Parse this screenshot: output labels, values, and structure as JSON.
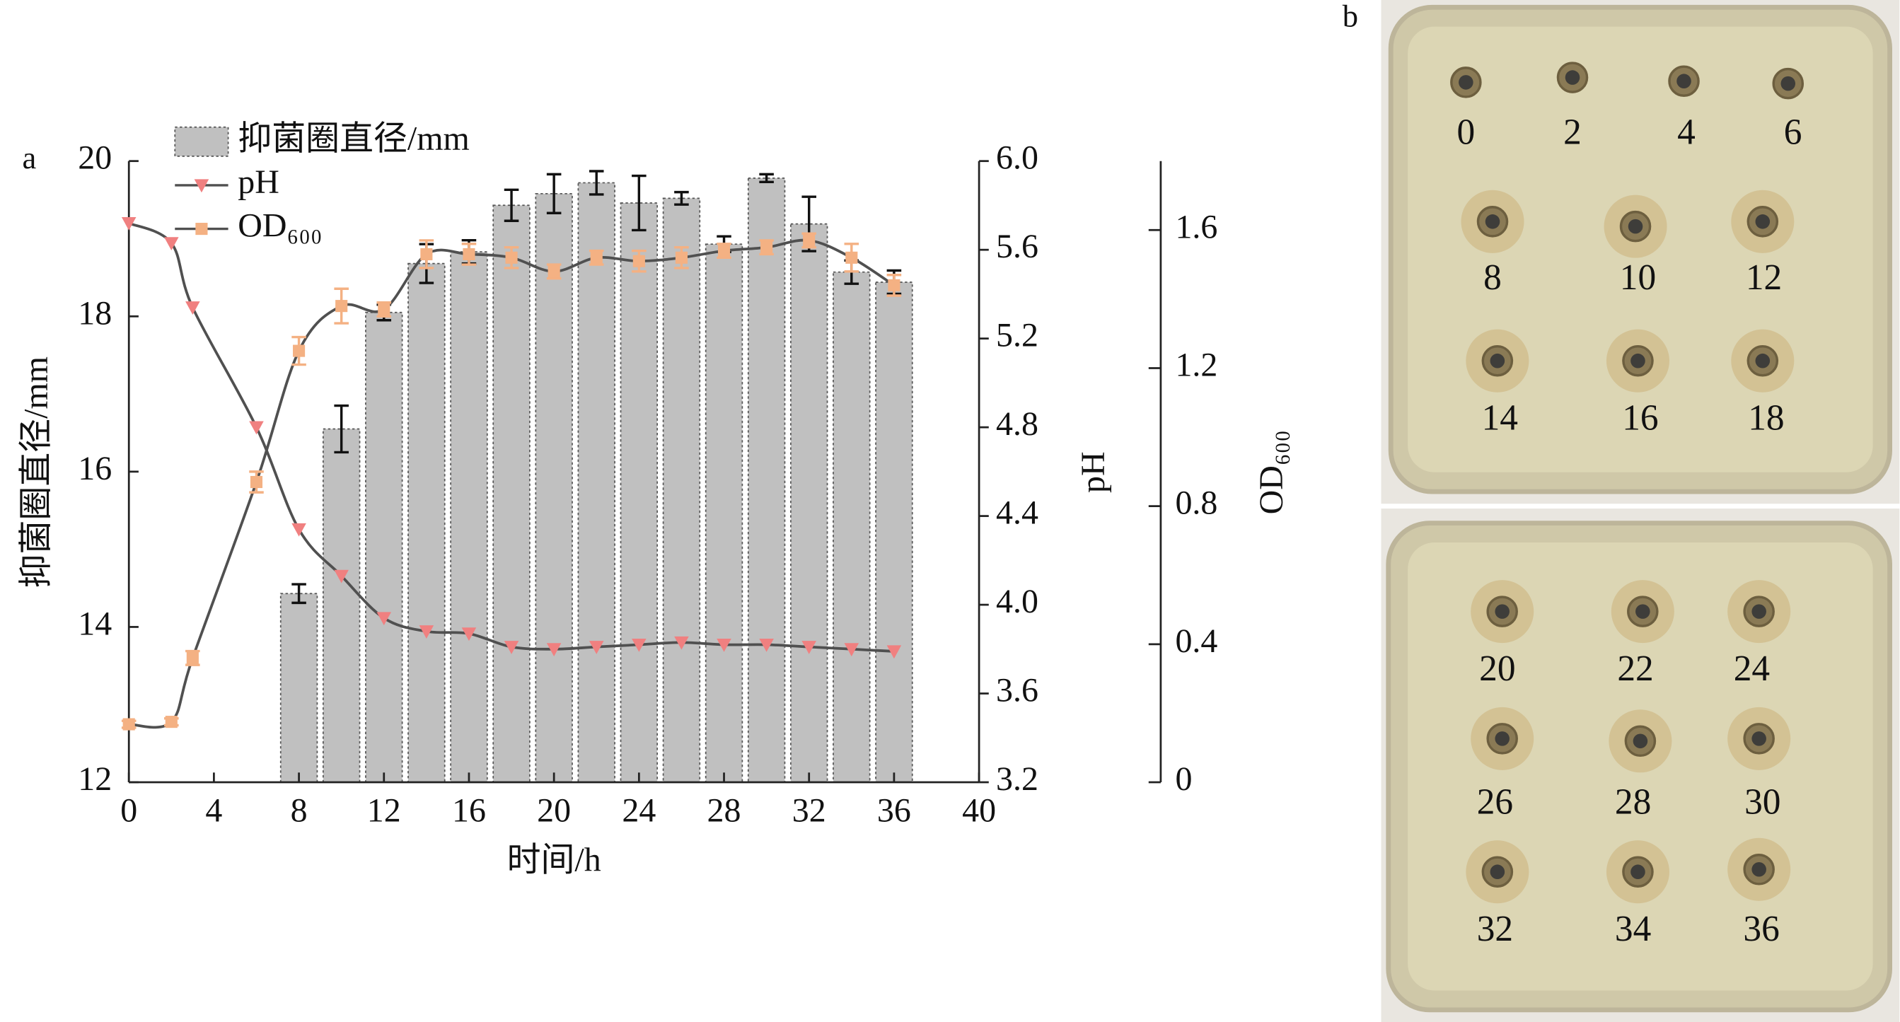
{
  "chart_data": {
    "type": "combo",
    "panel_label": "a",
    "xlabel": "时间/h",
    "ylabel": "抑菌圈直径/mm",
    "y2label": "pH",
    "y3label": "OD₆₀₀",
    "xlim": [
      0,
      40
    ],
    "xticks": [
      0,
      4,
      8,
      12,
      16,
      20,
      24,
      28,
      32,
      36,
      40
    ],
    "ylim": [
      12,
      20
    ],
    "yticks": [
      12,
      14,
      16,
      18,
      20
    ],
    "y2lim": [
      3.2,
      6.0
    ],
    "y2ticks": [
      3.2,
      3.6,
      {
        "value": 4,
        "label": "4.0"
      },
      4.4,
      4.8,
      5.2,
      5.6,
      {
        "value": 6,
        "label": "6.0"
      }
    ],
    "y3lim": [
      0,
      1.8
    ],
    "y3ticks": [
      0,
      0.4,
      0.8,
      1.2,
      1.6
    ],
    "series": [
      {
        "name": "抑菌圈直径/mm",
        "type": "bar",
        "color": "#c0c0c0",
        "x": [
          8,
          10,
          12,
          14,
          16,
          18,
          20,
          22,
          24,
          26,
          28,
          30,
          32,
          34,
          36
        ],
        "values": [
          14.43,
          16.55,
          18.05,
          18.68,
          18.83,
          19.43,
          19.58,
          19.72,
          19.46,
          19.52,
          18.93,
          19.78,
          19.19,
          18.57,
          18.44
        ],
        "errors": [
          0.12,
          0.3,
          0.1,
          0.25,
          0.15,
          0.2,
          0.25,
          0.15,
          0.35,
          0.08,
          0.1,
          0.05,
          0.35,
          0.15,
          0.15
        ]
      },
      {
        "name": "pH",
        "type": "line",
        "axis": "y2",
        "color": "#f08080",
        "marker": "triangle",
        "x": [
          0,
          2,
          3,
          6,
          8,
          10,
          12,
          14,
          16,
          18,
          20,
          22,
          24,
          26,
          28,
          30,
          32,
          34,
          36
        ],
        "values": [
          5.72,
          5.63,
          5.34,
          4.8,
          4.34,
          4.13,
          3.94,
          3.88,
          3.87,
          3.81,
          3.8,
          3.81,
          3.82,
          3.83,
          3.82,
          3.82,
          3.81,
          3.8,
          3.79
        ]
      },
      {
        "name": "OD₆₀₀",
        "type": "line",
        "axis": "y3",
        "color": "#f4b183",
        "marker": "square",
        "x": [
          0,
          2,
          3,
          6,
          8,
          10,
          12,
          14,
          16,
          18,
          20,
          22,
          24,
          26,
          28,
          30,
          32,
          34,
          36
        ],
        "values": [
          0.168,
          0.175,
          0.36,
          0.87,
          1.25,
          1.38,
          1.37,
          1.53,
          1.53,
          1.52,
          1.48,
          1.52,
          1.51,
          1.52,
          1.54,
          1.55,
          1.57,
          1.52,
          1.44
        ],
        "errors": [
          0.01,
          0.01,
          0.02,
          0.03,
          0.04,
          0.05,
          0.02,
          0.04,
          0.03,
          0.03,
          0.02,
          0.02,
          0.03,
          0.03,
          0.02,
          0.02,
          0.02,
          0.04,
          0.03
        ]
      }
    ]
  },
  "photo": {
    "panel_label": "b",
    "top_plate": [
      "0",
      "2",
      "4",
      "6",
      "8",
      "10",
      "12",
      "14",
      "16",
      "18"
    ],
    "bottom_plate": [
      "20",
      "22",
      "24",
      "26",
      "28",
      "30",
      "32",
      "34",
      "36"
    ]
  }
}
